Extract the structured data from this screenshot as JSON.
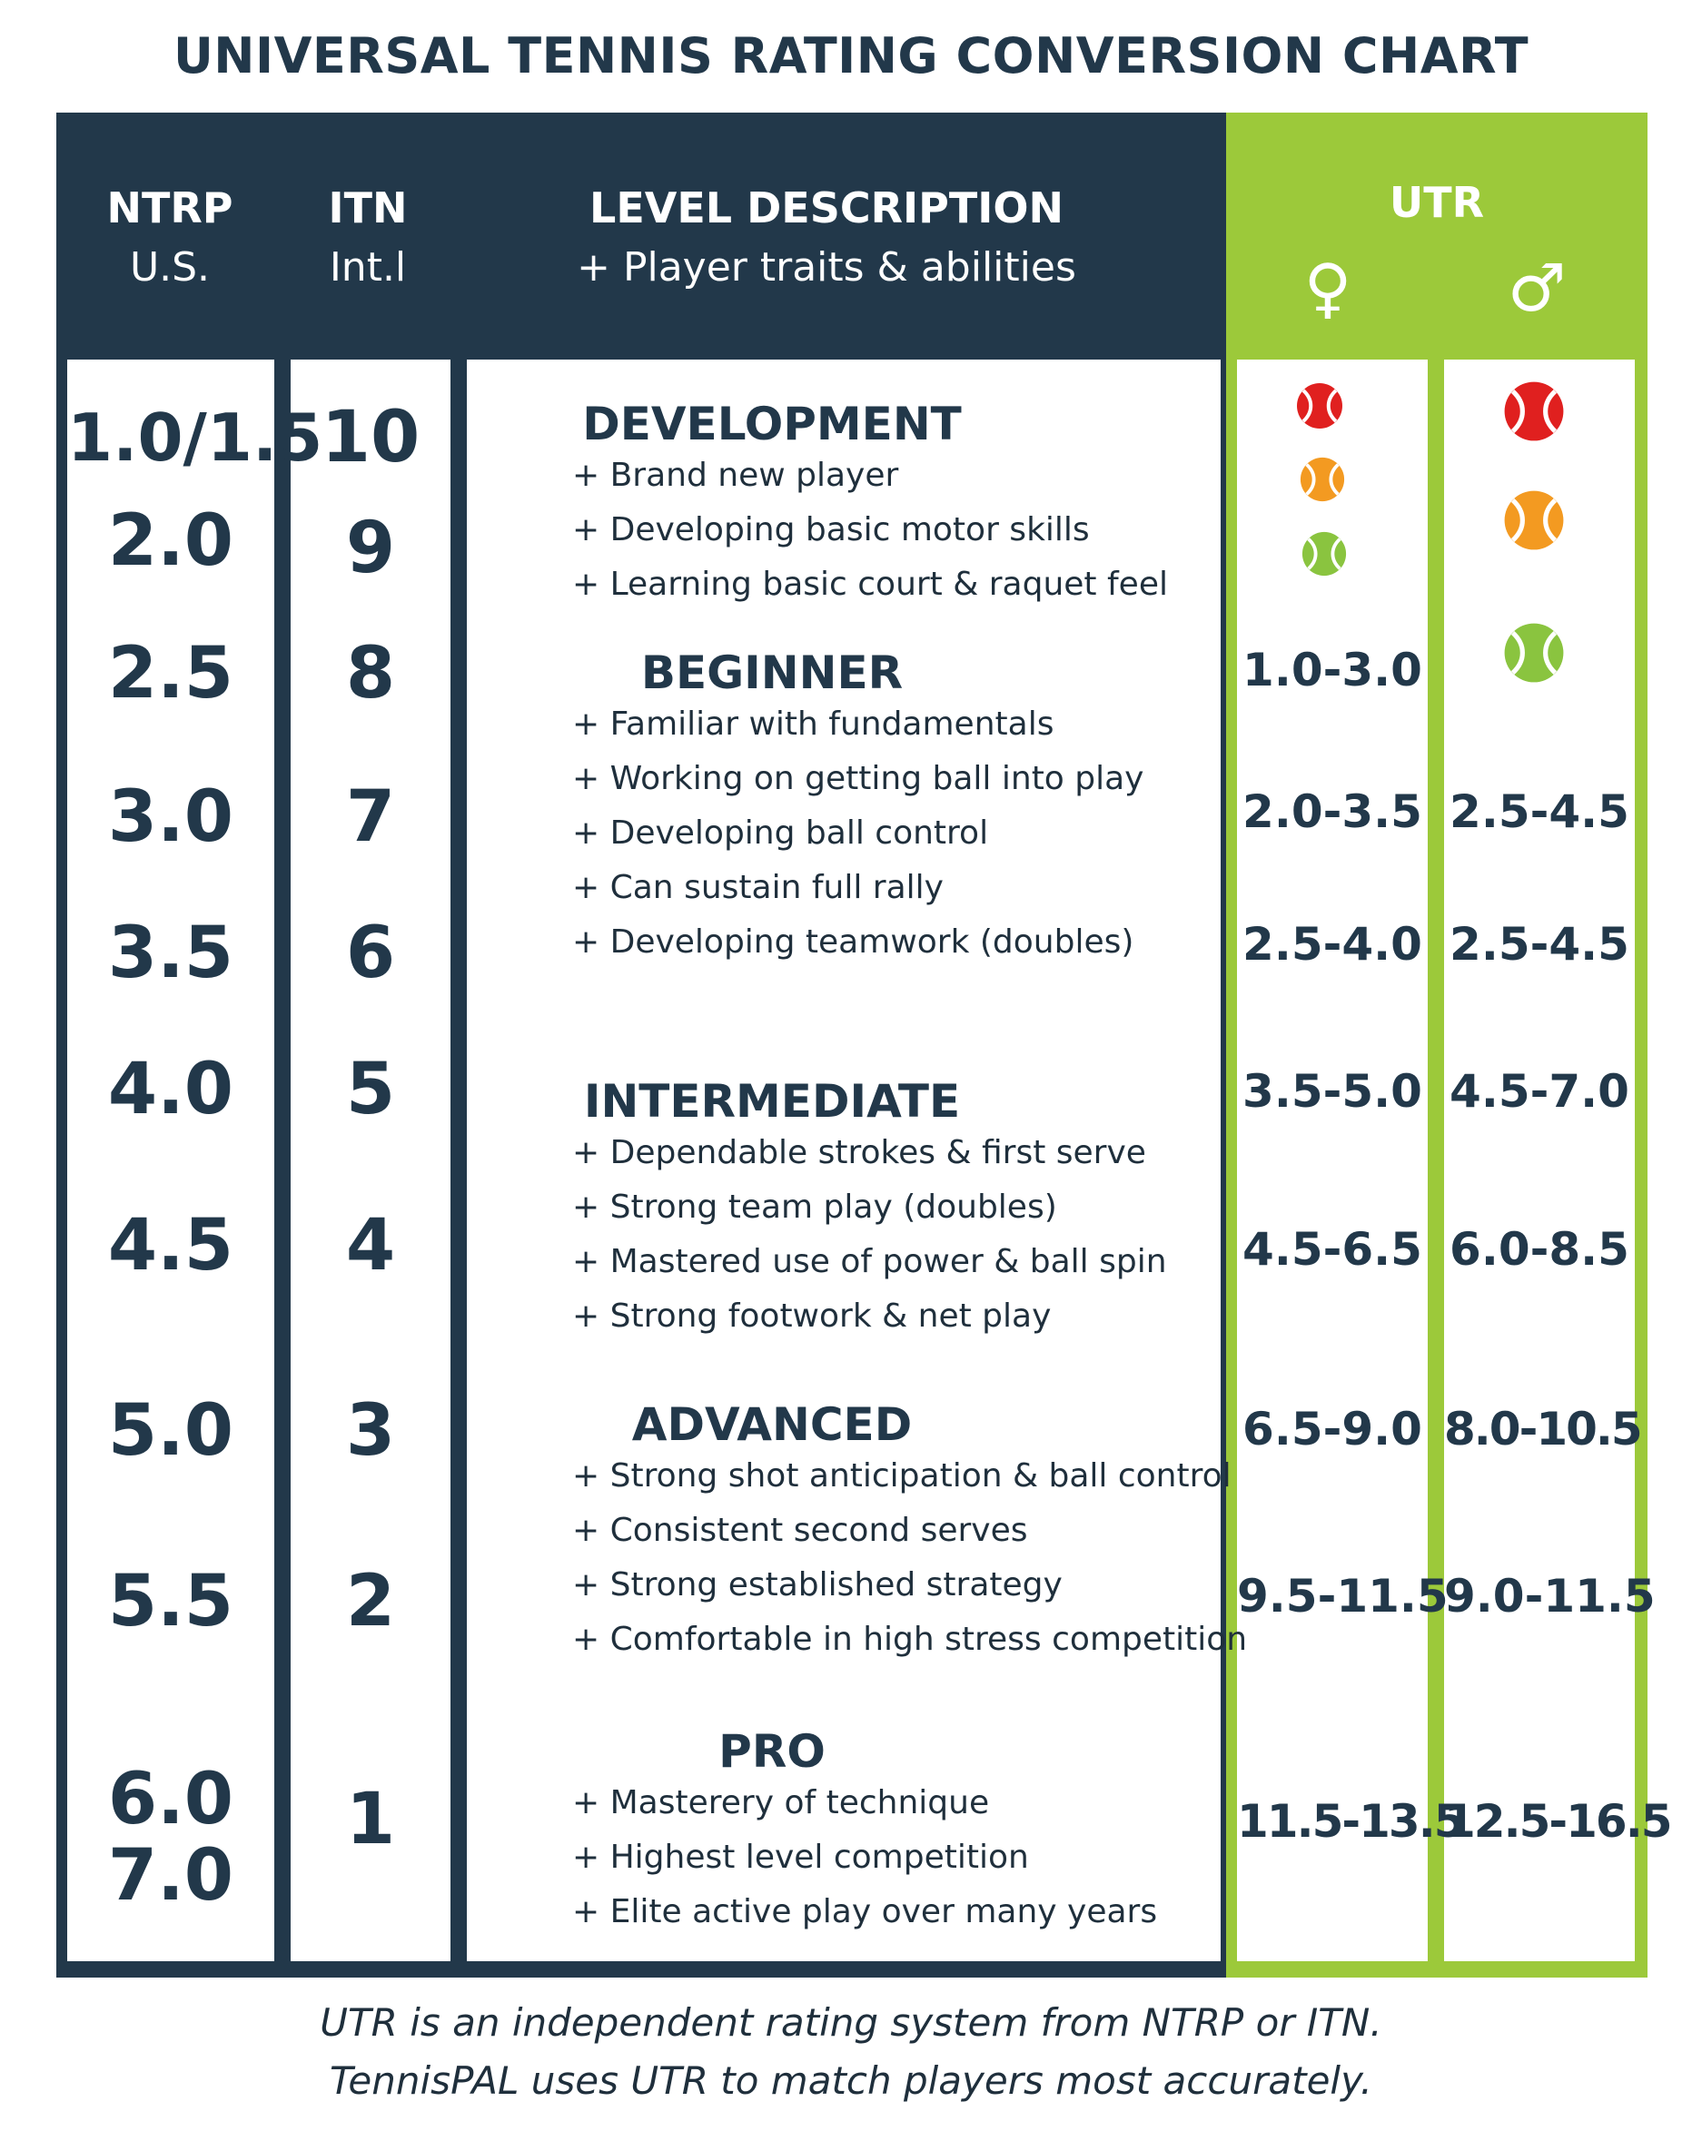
{
  "title": "UNIVERSAL TENNIS RATING CONVERSION CHART",
  "header": {
    "ntrp_line1": "NTRP",
    "ntrp_line2": "U.S.",
    "itn_line1": "ITN",
    "itn_line2": "Int.l",
    "level_line1": "LEVEL DESCRIPTION",
    "level_line2": "+ Player traits & abilities",
    "utr": "UTR",
    "female_symbol": "♀",
    "male_symbol": "♂"
  },
  "ntrp": [
    "1.0/1.5",
    "2.0",
    "2.5",
    "3.0",
    "3.5",
    "4.0",
    "4.5",
    "5.0",
    "5.5",
    "6.0",
    "7.0"
  ],
  "itn": [
    "10",
    "9",
    "8",
    "7",
    "6",
    "5",
    "4",
    "3",
    "2",
    "1"
  ],
  "levels": [
    {
      "title": "DEVELOPMENT",
      "bullets": [
        "+ Brand new player",
        "+ Developing basic motor skills",
        "+ Learning basic court & raquet feel"
      ]
    },
    {
      "title": "BEGINNER",
      "bullets": [
        "+ Familiar with fundamentals",
        "+ Working on getting ball into play",
        "+ Developing ball control",
        "+ Can sustain full rally",
        "+ Developing teamwork (doubles)"
      ]
    },
    {
      "title": "INTERMEDIATE",
      "bullets": [
        "+ Dependable strokes & first serve",
        "+ Strong team play (doubles)",
        "+ Mastered use of power & ball spin",
        "+ Strong footwork & net play"
      ]
    },
    {
      "title": "ADVANCED",
      "bullets": [
        "+ Strong shot anticipation & ball control",
        "+ Consistent second serves",
        "+ Strong established strategy",
        "+ Comfortable in high stress competition"
      ]
    },
    {
      "title": "PRO",
      "bullets": [
        "+ Masterery of technique",
        "+ Highest level competition",
        "+ Elite active play over many years"
      ]
    }
  ],
  "utr_female": [
    "1.0-3.0",
    "2.0-3.5",
    "2.5-4.0",
    "3.5-5.0",
    "4.5-6.5",
    "6.5-9.0",
    "9.5-11.5",
    "11.5-13.5"
  ],
  "utr_male": [
    "2.5-4.5",
    "2.5-4.5",
    "4.5-7.0",
    "6.0-8.5",
    "8.0-10.5",
    "9.0-11.5",
    "12.5-16.5"
  ],
  "balls": {
    "red": "#e0201f",
    "orange": "#f39a21",
    "green": "#8ac43f",
    "female_icons": [
      "red-ball-icon",
      "orange-ball-icon",
      "green-ball-icon"
    ],
    "male_icons": [
      "red-ball-icon",
      "orange-ball-icon",
      "green-ball-icon"
    ]
  },
  "footnote": {
    "line1": "UTR is an independent rating system from NTRP or ITN.",
    "line2": "TennisPAL uses UTR to match players most accurately."
  },
  "colors": {
    "navy": "#22384a",
    "lime": "#9cc93a"
  }
}
